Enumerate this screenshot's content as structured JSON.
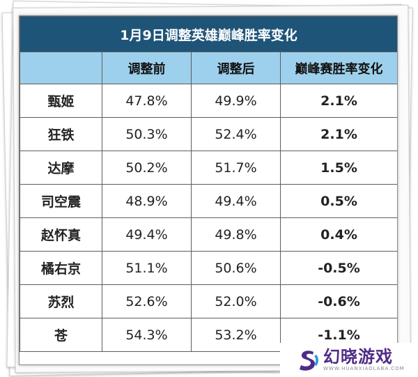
{
  "table": {
    "title": "1月9日调整英雄巅峰胜率变化",
    "headers": [
      "",
      "调整前",
      "调整后",
      "巅峰赛胜率变化"
    ],
    "rows": [
      {
        "name": "甄姬",
        "before": "47.8%",
        "after": "49.9%",
        "change": "2.1%",
        "trend": "up"
      },
      {
        "name": "狂铁",
        "before": "50.3%",
        "after": "52.4%",
        "change": "2.1%",
        "trend": "up"
      },
      {
        "name": "达摩",
        "before": "50.2%",
        "after": "51.7%",
        "change": "1.5%",
        "trend": "up"
      },
      {
        "name": "司空震",
        "before": "48.9%",
        "after": "49.4%",
        "change": "0.5%",
        "trend": "up"
      },
      {
        "name": "赵怀真",
        "before": "49.4%",
        "after": "49.8%",
        "change": "0.4%",
        "trend": "up"
      },
      {
        "name": "橘右京",
        "before": "51.1%",
        "after": "50.6%",
        "change": "-0.5%",
        "trend": "down"
      },
      {
        "name": "苏烈",
        "before": "52.6%",
        "after": "52.0%",
        "change": "-0.6%",
        "trend": "down"
      },
      {
        "name": "苍",
        "before": "54.3%",
        "after": "53.2%",
        "change": "-1.1%",
        "trend": "down"
      }
    ]
  },
  "watermark": {
    "name": "幻晓游戏",
    "url": "WWW.HUANXIAOLABA.COM"
  },
  "colors": {
    "title_bg": "#1f5479",
    "header_bg": "#9dd0ec",
    "positive": "#b11a1a",
    "negative": "#2e8a55"
  }
}
